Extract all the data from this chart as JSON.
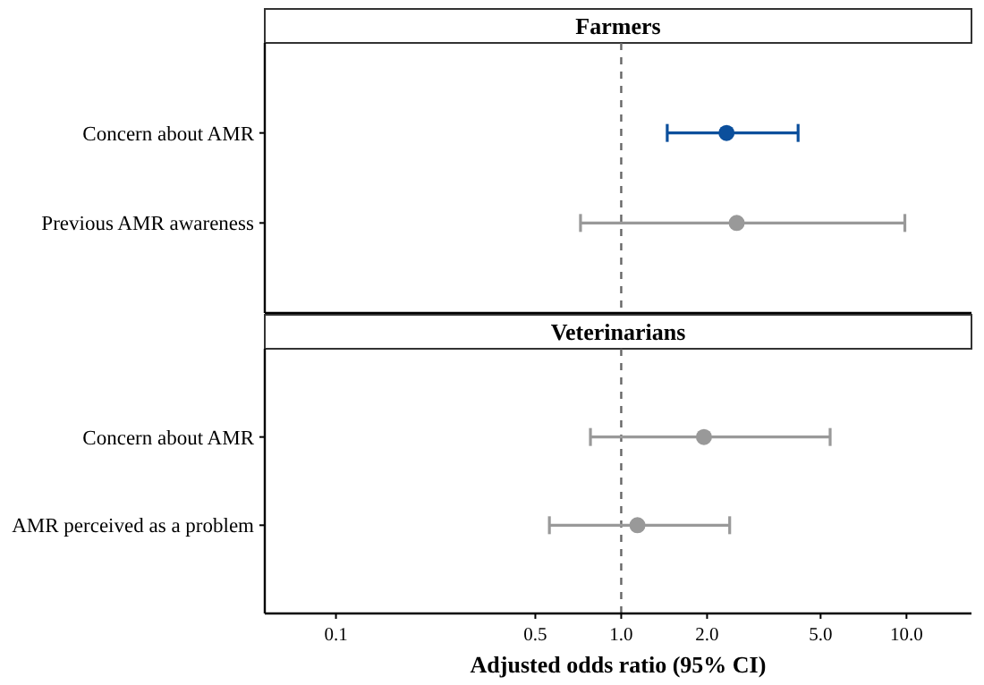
{
  "chart_data": [
    {
      "type": "scatter",
      "orientation": "horizontal",
      "title": "Farmers",
      "categories": [
        "Concern about AMR",
        "Previous AMR awareness"
      ],
      "values": [
        2.34,
        2.54
      ],
      "errors": [
        [
          1.45,
          4.17
        ],
        [
          0.72,
          9.87
        ]
      ],
      "colors": [
        "#0b4f9c",
        "#999999"
      ],
      "log": "x",
      "xlim": [
        0.0563,
        16.9
      ],
      "tick_labels": "y",
      "marker": "circle",
      "ref_lines": [
        {
          "axis": "x",
          "value": 1,
          "line_style": "dashed",
          "color": "#666666"
        }
      ]
    },
    {
      "type": "scatter",
      "orientation": "horizontal",
      "title": "Veterinarians",
      "xlabel": "Adjusted odds ratio (95% CI)",
      "categories": [
        "Concern about AMR",
        "AMR perceived as a problem"
      ],
      "values": [
        1.95,
        1.14
      ],
      "errors": [
        [
          0.78,
          5.4
        ],
        [
          0.56,
          2.4
        ]
      ],
      "colors": [
        "#999999",
        "#999999"
      ],
      "log": "x",
      "xlim": [
        0.0563,
        16.9
      ],
      "xticks": [
        0.1,
        0.5,
        {
          "value": 1,
          "label": "1.0"
        },
        {
          "value": 2,
          "label": "2.0"
        },
        {
          "value": 5,
          "label": "5.0"
        },
        {
          "value": 10,
          "label": "10.0"
        }
      ],
      "marker": "circle",
      "ref_lines": [
        {
          "axis": "x",
          "value": 1,
          "line_style": "dashed",
          "color": "#666666"
        }
      ]
    }
  ]
}
